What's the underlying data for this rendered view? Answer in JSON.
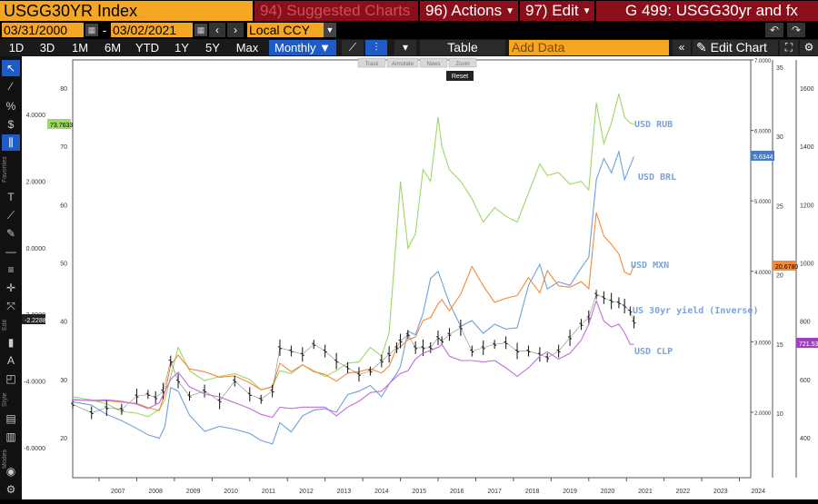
{
  "header": {
    "ticker": "USGG30YR Index",
    "menu_suggested": "94) Suggested Charts",
    "menu_actions": "96) Actions",
    "menu_edit": "97) Edit",
    "graph_title": "G 499: USGG30yr and fx"
  },
  "dates": {
    "start": "03/31/2000",
    "sep": "-",
    "end": "03/02/2021",
    "currency": "Local CCY"
  },
  "ranges": [
    "1D",
    "3D",
    "1M",
    "6M",
    "YTD",
    "1Y",
    "5Y",
    "Max"
  ],
  "frequency": "Monthly",
  "toolbar": {
    "table_label": "Table",
    "add_data_placeholder": "Add Data",
    "edit_chart_label": "Edit Chart"
  },
  "chart_buttons": [
    "Track",
    "Annotate",
    "News",
    "Zoom"
  ],
  "reset_label": "Reset",
  "left_labels": {
    "favorites": "Favorites",
    "edit": "Edit",
    "style": "Style",
    "modes": "Modes"
  },
  "colors": {
    "rub": "#9fd66a",
    "brl": "#6fa0da",
    "mxn": "#f08a3c",
    "yield": "#111111",
    "clp": "#c46cdc",
    "legend": "#7aa3d8"
  },
  "chart_data": {
    "type": "line",
    "x_ticks": [
      "2007",
      "2008",
      "2009",
      "2010",
      "2011",
      "2012",
      "2013",
      "2014",
      "2015",
      "2016",
      "2017",
      "2018",
      "2019",
      "2020",
      "2021",
      "2022",
      "2023",
      "2024"
    ],
    "axes": {
      "yield": {
        "ticks": [
          "4.0000",
          "2.0000",
          "0.0000",
          "-2.0000",
          "-4.0000",
          "-6.0000"
        ],
        "range": [
          4.0,
          -6.0
        ],
        "inverted": true
      },
      "rub": {
        "ticks": [
          "80",
          "70",
          "60",
          "50",
          "40",
          "30",
          "20"
        ],
        "range": [
          20,
          80
        ]
      },
      "brl": {
        "ticks": [
          "7.0000",
          "6.0000",
          "5.0000",
          "4.0000",
          "3.0000",
          "2.0000"
        ],
        "range": [
          1.0,
          7.0
        ]
      },
      "mxn": {
        "ticks": [
          "35",
          "30",
          "25",
          "20",
          "15",
          "10"
        ],
        "range": [
          5,
          35
        ]
      },
      "clp": {
        "ticks": [
          "1600",
          "1400",
          "1200",
          "1000",
          "800",
          "600",
          "400"
        ],
        "range": [
          300,
          1600
        ]
      }
    },
    "last_values": {
      "rub": "73.7633",
      "yield": "-2.2288",
      "brl": "5.6344",
      "mxn": "20.6780",
      "clp": "721.53"
    },
    "series": [
      {
        "name": "USD RUB",
        "axis": "rub",
        "x": [
          2006.3,
          2006.8,
          2007.2,
          2007.6,
          2008.0,
          2008.3,
          2008.6,
          2008.75,
          2008.9,
          2009.1,
          2009.4,
          2009.8,
          2010.2,
          2010.6,
          2011.0,
          2011.3,
          2011.6,
          2011.8,
          2012.1,
          2012.4,
          2012.7,
          2013.0,
          2013.3,
          2013.6,
          2013.9,
          2014.2,
          2014.5,
          2014.7,
          2014.9,
          2015.0,
          2015.2,
          2015.4,
          2015.6,
          2015.8,
          2016.0,
          2016.1,
          2016.3,
          2016.6,
          2016.9,
          2017.2,
          2017.5,
          2017.8,
          2018.1,
          2018.4,
          2018.7,
          2018.9,
          2019.2,
          2019.5,
          2019.8,
          2020.0,
          2020.2,
          2020.4,
          2020.6,
          2020.8,
          2020.95,
          2021.1,
          2021.2
        ],
        "values": [
          27.0,
          26.5,
          25.8,
          24.5,
          24.2,
          23.6,
          24.9,
          26.5,
          30.5,
          35.5,
          31.5,
          29.8,
          30.5,
          31.0,
          30.0,
          28.2,
          28.8,
          31.5,
          31.0,
          32.5,
          31.5,
          30.5,
          31.5,
          32.8,
          33.0,
          35.5,
          34.0,
          38.0,
          55.0,
          64.0,
          52.5,
          55.0,
          66.0,
          64.0,
          75.0,
          70.0,
          66.0,
          64.0,
          61.0,
          57.0,
          59.5,
          58.0,
          57.0,
          62.0,
          67.0,
          65.0,
          65.5,
          63.5,
          64.0,
          62.5,
          77.5,
          70.5,
          74.0,
          79.0,
          75.0,
          74.0,
          73.8
        ]
      },
      {
        "name": "USD BRL",
        "axis": "brl",
        "x": [
          2006.3,
          2006.8,
          2007.2,
          2007.6,
          2008.0,
          2008.3,
          2008.6,
          2008.75,
          2008.9,
          2009.1,
          2009.4,
          2009.8,
          2010.2,
          2010.6,
          2011.0,
          2011.3,
          2011.6,
          2011.8,
          2012.1,
          2012.4,
          2012.7,
          2013.0,
          2013.3,
          2013.6,
          2013.9,
          2014.2,
          2014.5,
          2014.7,
          2014.9,
          2015.0,
          2015.2,
          2015.4,
          2015.6,
          2015.8,
          2016.0,
          2016.1,
          2016.3,
          2016.6,
          2016.9,
          2017.2,
          2017.5,
          2017.8,
          2018.1,
          2018.4,
          2018.7,
          2018.9,
          2019.2,
          2019.5,
          2019.8,
          2020.0,
          2020.2,
          2020.4,
          2020.6,
          2020.8,
          2020.95,
          2021.1,
          2021.2
        ],
        "values": [
          2.15,
          2.1,
          1.97,
          1.88,
          1.77,
          1.68,
          1.63,
          1.8,
          2.35,
          2.3,
          1.96,
          1.73,
          1.8,
          1.76,
          1.7,
          1.6,
          1.55,
          1.85,
          1.72,
          1.95,
          2.03,
          2.05,
          2.0,
          2.25,
          2.3,
          2.38,
          2.22,
          2.4,
          2.55,
          2.65,
          3.15,
          3.1,
          3.4,
          3.9,
          4.0,
          3.85,
          3.55,
          3.22,
          3.3,
          3.12,
          3.25,
          3.18,
          3.2,
          3.8,
          4.1,
          3.75,
          3.85,
          3.8,
          4.05,
          4.2,
          5.3,
          5.6,
          5.4,
          5.7,
          5.3,
          5.5,
          5.63
        ]
      },
      {
        "name": "USD MXN",
        "axis": "mxn",
        "x": [
          2006.3,
          2006.8,
          2007.2,
          2007.6,
          2008.0,
          2008.3,
          2008.6,
          2008.75,
          2008.9,
          2009.1,
          2009.4,
          2009.8,
          2010.2,
          2010.6,
          2011.0,
          2011.3,
          2011.6,
          2011.8,
          2012.1,
          2012.4,
          2012.7,
          2013.0,
          2013.3,
          2013.6,
          2013.9,
          2014.2,
          2014.5,
          2014.7,
          2014.9,
          2015.0,
          2015.2,
          2015.4,
          2015.6,
          2015.8,
          2016.0,
          2016.1,
          2016.3,
          2016.6,
          2016.9,
          2017.2,
          2017.5,
          2017.8,
          2018.1,
          2018.4,
          2018.7,
          2018.9,
          2019.2,
          2019.5,
          2019.8,
          2020.0,
          2020.2,
          2020.4,
          2020.6,
          2020.8,
          2020.95,
          2021.1,
          2021.2
        ],
        "values": [
          11.0,
          10.9,
          10.9,
          10.8,
          10.7,
          10.4,
          10.2,
          11.5,
          13.5,
          14.2,
          13.2,
          13.0,
          12.6,
          12.7,
          12.2,
          11.7,
          11.9,
          13.6,
          13.0,
          13.5,
          13.0,
          12.8,
          12.3,
          12.9,
          13.0,
          13.2,
          12.9,
          13.4,
          14.7,
          14.8,
          15.3,
          15.5,
          16.7,
          16.9,
          17.9,
          18.2,
          17.4,
          18.6,
          20.6,
          19.2,
          18.0,
          18.3,
          18.5,
          19.8,
          18.7,
          20.3,
          19.2,
          19.1,
          19.5,
          19.0,
          24.5,
          22.8,
          22.2,
          21.5,
          20.2,
          20.0,
          20.7
        ]
      },
      {
        "name": "US 30yr yield (Inverse)",
        "axis": "yield",
        "x": [
          2006.3,
          2006.8,
          2007.2,
          2007.6,
          2008.0,
          2008.3,
          2008.5,
          2008.7,
          2008.9,
          2009.1,
          2009.4,
          2009.8,
          2010.2,
          2010.6,
          2011.0,
          2011.3,
          2011.6,
          2011.8,
          2012.1,
          2012.4,
          2012.7,
          2013.0,
          2013.3,
          2013.6,
          2013.9,
          2014.2,
          2014.5,
          2014.7,
          2014.9,
          2015.0,
          2015.2,
          2015.4,
          2015.6,
          2015.8,
          2016.0,
          2016.1,
          2016.3,
          2016.6,
          2016.9,
          2017.2,
          2017.5,
          2017.8,
          2018.1,
          2018.4,
          2018.7,
          2018.9,
          2019.2,
          2019.5,
          2019.8,
          2020.0,
          2020.2,
          2020.4,
          2020.6,
          2020.8,
          2020.95,
          2021.1,
          2021.2
        ],
        "values": [
          -4.7,
          -4.95,
          -4.8,
          -4.85,
          -4.45,
          -4.4,
          -4.5,
          -4.3,
          -3.4,
          -4.0,
          -4.45,
          -4.3,
          -4.6,
          -4.0,
          -4.4,
          -4.55,
          -4.3,
          -3.0,
          -3.1,
          -3.2,
          -2.9,
          -3.1,
          -3.4,
          -3.6,
          -3.8,
          -3.7,
          -3.4,
          -3.2,
          -3.0,
          -2.8,
          -2.6,
          -3.0,
          -3.0,
          -3.0,
          -2.7,
          -2.8,
          -2.6,
          -2.4,
          -3.1,
          -3.0,
          -2.9,
          -2.85,
          -3.1,
          -3.1,
          -3.2,
          -3.3,
          -3.1,
          -2.7,
          -2.3,
          -2.1,
          -1.4,
          -1.5,
          -1.6,
          -1.65,
          -1.75,
          -1.9,
          -2.23
        ]
      },
      {
        "name": "USD CLP",
        "axis": "clp",
        "x": [
          2006.3,
          2006.8,
          2007.2,
          2007.6,
          2008.0,
          2008.3,
          2008.6,
          2008.75,
          2008.9,
          2009.1,
          2009.4,
          2009.8,
          2010.2,
          2010.6,
          2011.0,
          2011.3,
          2011.6,
          2011.8,
          2012.1,
          2012.4,
          2012.7,
          2013.0,
          2013.3,
          2013.6,
          2013.9,
          2014.2,
          2014.5,
          2014.7,
          2014.9,
          2015.0,
          2015.2,
          2015.4,
          2015.6,
          2015.8,
          2016.0,
          2016.1,
          2016.3,
          2016.6,
          2016.9,
          2017.2,
          2017.5,
          2017.8,
          2018.1,
          2018.4,
          2018.7,
          2018.9,
          2019.2,
          2019.5,
          2019.8,
          2020.0,
          2020.2,
          2020.4,
          2020.6,
          2020.8,
          2020.95,
          2021.1,
          2021.2
        ],
        "values": [
          530,
          528,
          530,
          525,
          515,
          500,
          520,
          560,
          600,
          625,
          575,
          550,
          540,
          520,
          500,
          480,
          470,
          505,
          500,
          505,
          505,
          505,
          475,
          505,
          525,
          555,
          560,
          585,
          610,
          620,
          630,
          670,
          690,
          700,
          710,
          720,
          680,
          665,
          665,
          660,
          665,
          640,
          610,
          640,
          680,
          695,
          670,
          690,
          735,
          790,
          870,
          800,
          780,
          790,
          760,
          720,
          721
        ]
      }
    ]
  }
}
